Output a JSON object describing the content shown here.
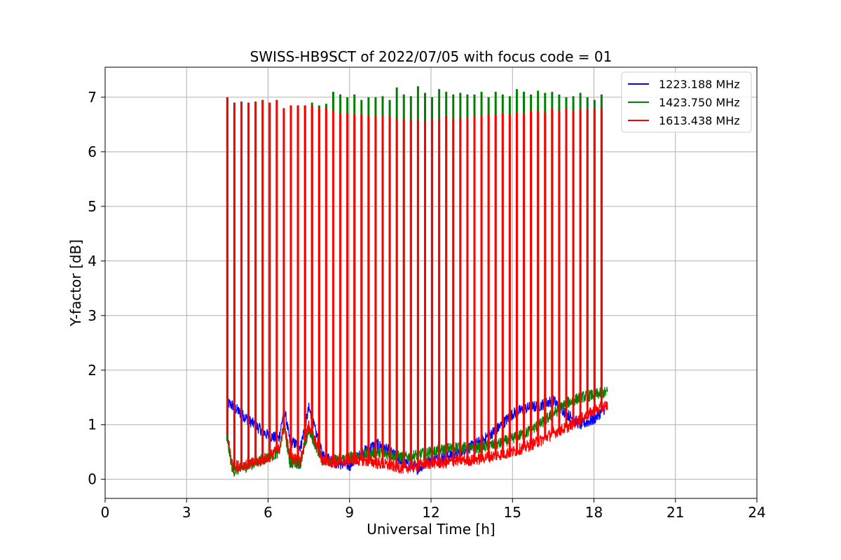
{
  "chart_data": {
    "type": "line",
    "title": "SWISS-HB9SCT of 2022/07/05 with focus code = 01",
    "xlabel": "Universal Time [h]",
    "ylabel": "Y-factor [dB]",
    "xlim": [
      0,
      24
    ],
    "ylim": [
      -0.35,
      7.55
    ],
    "xticks": [
      0,
      3,
      6,
      9,
      12,
      15,
      18,
      21,
      24
    ],
    "yticks": [
      0,
      1,
      2,
      3,
      4,
      5,
      6,
      7
    ],
    "xtick_labels": [
      "0",
      "3",
      "6",
      "9",
      "12",
      "15",
      "18",
      "21",
      "24"
    ],
    "ytick_labels": [
      "0",
      "1",
      "2",
      "3",
      "4",
      "5",
      "6",
      "7"
    ],
    "grid": true,
    "legend_position": "top-right",
    "series": [
      {
        "name": "1223.188 MHz",
        "color": "#0000ff",
        "x": [
          4.5,
          4.7,
          5.0,
          5.5,
          6.0,
          6.4,
          6.6,
          6.8,
          7.2,
          7.5,
          8.0,
          8.5,
          9.0,
          9.5,
          10.0,
          10.5,
          11.0,
          11.5,
          12.0,
          12.5,
          13.0,
          13.5,
          14.0,
          14.5,
          15.0,
          15.5,
          16.0,
          16.5,
          17.0,
          17.5,
          18.0,
          18.5
        ],
        "y": [
          1.4,
          1.35,
          1.2,
          1.0,
          0.8,
          0.75,
          1.3,
          0.7,
          0.6,
          1.3,
          0.45,
          0.3,
          0.25,
          0.5,
          0.65,
          0.5,
          0.3,
          0.2,
          0.35,
          0.4,
          0.5,
          0.6,
          0.75,
          0.95,
          1.2,
          1.3,
          1.35,
          1.45,
          1.2,
          1.0,
          1.1,
          1.35
        ]
      },
      {
        "name": "1423.750 MHz",
        "color": "#008000",
        "x": [
          4.5,
          4.7,
          5.0,
          5.5,
          6.0,
          6.4,
          6.6,
          6.8,
          7.2,
          7.5,
          8.0,
          8.5,
          9.0,
          9.5,
          10.0,
          10.5,
          11.0,
          11.5,
          12.0,
          12.5,
          13.0,
          13.5,
          14.0,
          14.5,
          15.0,
          15.5,
          16.0,
          16.5,
          17.0,
          17.5,
          18.0,
          18.5
        ],
        "y": [
          0.7,
          0.15,
          0.2,
          0.3,
          0.4,
          0.5,
          0.95,
          0.3,
          0.3,
          0.9,
          0.35,
          0.35,
          0.4,
          0.45,
          0.5,
          0.45,
          0.4,
          0.45,
          0.5,
          0.55,
          0.6,
          0.55,
          0.6,
          0.65,
          0.75,
          0.85,
          1.0,
          1.2,
          1.4,
          1.5,
          1.55,
          1.6
        ]
      },
      {
        "name": "1613.438 MHz",
        "color": "#ff0000",
        "x": [
          4.5,
          4.7,
          5.0,
          5.5,
          6.0,
          6.4,
          6.6,
          6.8,
          7.2,
          7.5,
          8.0,
          8.5,
          9.0,
          9.5,
          10.0,
          10.5,
          11.0,
          11.5,
          12.0,
          12.5,
          13.0,
          13.5,
          14.0,
          14.5,
          15.0,
          15.5,
          16.0,
          16.5,
          17.0,
          17.5,
          18.0,
          18.5
        ],
        "y": [
          0.8,
          0.25,
          0.25,
          0.3,
          0.4,
          0.55,
          1.0,
          0.4,
          0.35,
          1.0,
          0.35,
          0.3,
          0.35,
          0.35,
          0.3,
          0.25,
          0.2,
          0.25,
          0.3,
          0.3,
          0.35,
          0.35,
          0.4,
          0.45,
          0.5,
          0.6,
          0.7,
          0.85,
          0.95,
          1.1,
          1.25,
          1.35
        ]
      }
    ],
    "calibration_spikes": {
      "series": "1613.438 MHz",
      "x": [
        4.5,
        4.76,
        5.02,
        5.28,
        5.54,
        5.8,
        6.06,
        6.32,
        6.58,
        6.84,
        7.1,
        7.36,
        7.62,
        7.88,
        8.14,
        8.4,
        8.66,
        8.92,
        9.18,
        9.44,
        9.7,
        9.96,
        10.22,
        10.48,
        10.74,
        11.0,
        11.26,
        11.52,
        11.78,
        12.04,
        12.3,
        12.56,
        12.82,
        13.08,
        13.34,
        13.6,
        13.86,
        14.12,
        14.38,
        14.64,
        14.9,
        15.16,
        15.42,
        15.68,
        15.94,
        16.2,
        16.46,
        16.72,
        16.98,
        17.24,
        17.5,
        17.76,
        18.02,
        18.28
      ],
      "peak_y": [
        7.0,
        6.9,
        6.92,
        6.9,
        6.92,
        6.95,
        6.9,
        6.95,
        6.8,
        6.85,
        6.85,
        6.85,
        6.85,
        6.8,
        6.8,
        6.75,
        6.7,
        6.7,
        6.68,
        6.68,
        6.65,
        6.65,
        6.65,
        6.65,
        6.6,
        6.6,
        6.58,
        6.58,
        6.55,
        6.6,
        6.6,
        6.65,
        6.6,
        6.62,
        6.62,
        6.65,
        6.65,
        6.68,
        6.68,
        6.7,
        6.68,
        6.72,
        6.7,
        6.75,
        6.75,
        6.72,
        6.78,
        6.75,
        6.78,
        6.75,
        6.78,
        6.78,
        6.78,
        6.8
      ],
      "green_peak_y": [
        7.0,
        6.9,
        6.92,
        6.9,
        6.92,
        6.95,
        6.9,
        6.95,
        6.8,
        6.85,
        6.85,
        6.85,
        6.9,
        6.85,
        6.88,
        7.1,
        7.05,
        7.0,
        7.05,
        6.95,
        7.0,
        7.0,
        7.02,
        6.95,
        7.18,
        7.05,
        7.02,
        7.2,
        7.08,
        7.0,
        7.15,
        7.1,
        7.05,
        7.08,
        7.05,
        7.05,
        7.1,
        7.0,
        7.1,
        7.05,
        7.02,
        7.15,
        7.1,
        7.05,
        7.12,
        7.08,
        7.1,
        7.05,
        7.0,
        7.02,
        7.08,
        7.0,
        6.95,
        7.05
      ]
    }
  }
}
